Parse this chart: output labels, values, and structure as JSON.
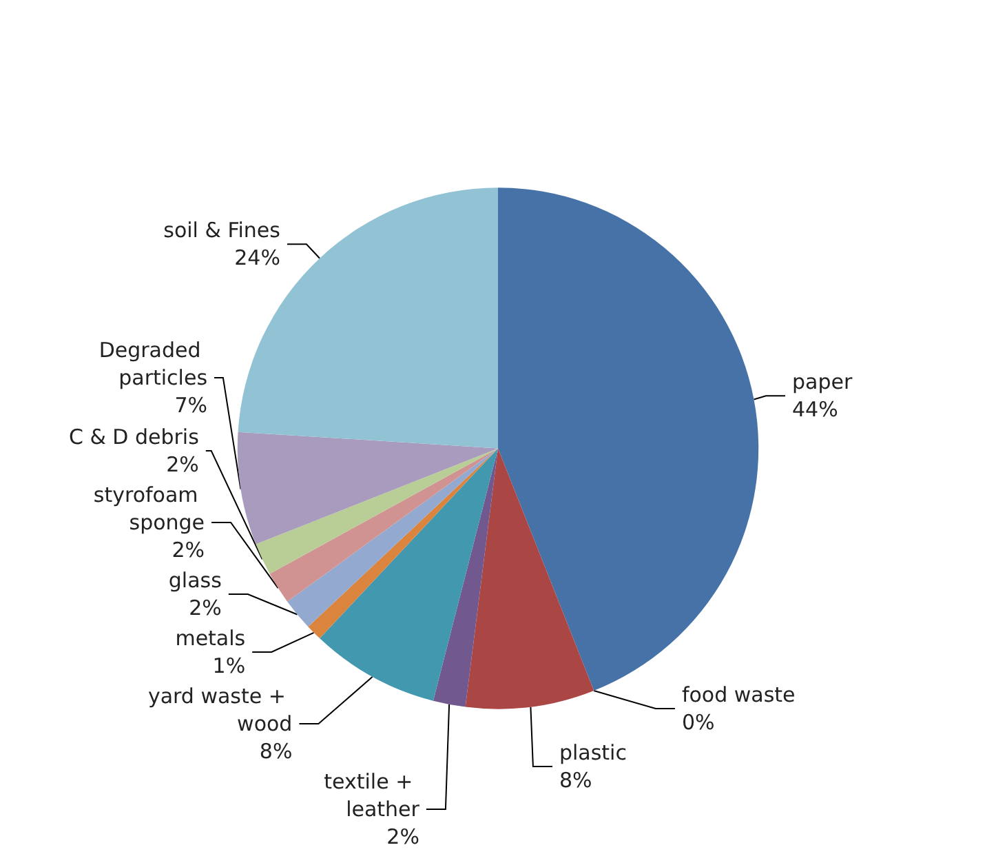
{
  "chart_data": {
    "type": "pie",
    "categories": [
      "paper",
      "food waste",
      "plastic",
      "textile + leather",
      "yard waste + wood",
      "metals",
      "glass",
      "styrofoam sponge",
      "C & D debris",
      "Degraded particles",
      "soil & Fines"
    ],
    "values": [
      44,
      0,
      8,
      2,
      8,
      1,
      2,
      2,
      2,
      7,
      24
    ],
    "colors": [
      "#4672a8",
      "#89a54e",
      "#aa4643",
      "#71588f",
      "#4198af",
      "#db843d",
      "#93a9cf",
      "#d19392",
      "#b9cd96",
      "#a99bbd",
      "#92c3d4"
    ],
    "value_labels": [
      "44%",
      "0%",
      "8%",
      "2%",
      "8%",
      "1%",
      "2%",
      "2%",
      "2%",
      "7%",
      "24%"
    ]
  }
}
